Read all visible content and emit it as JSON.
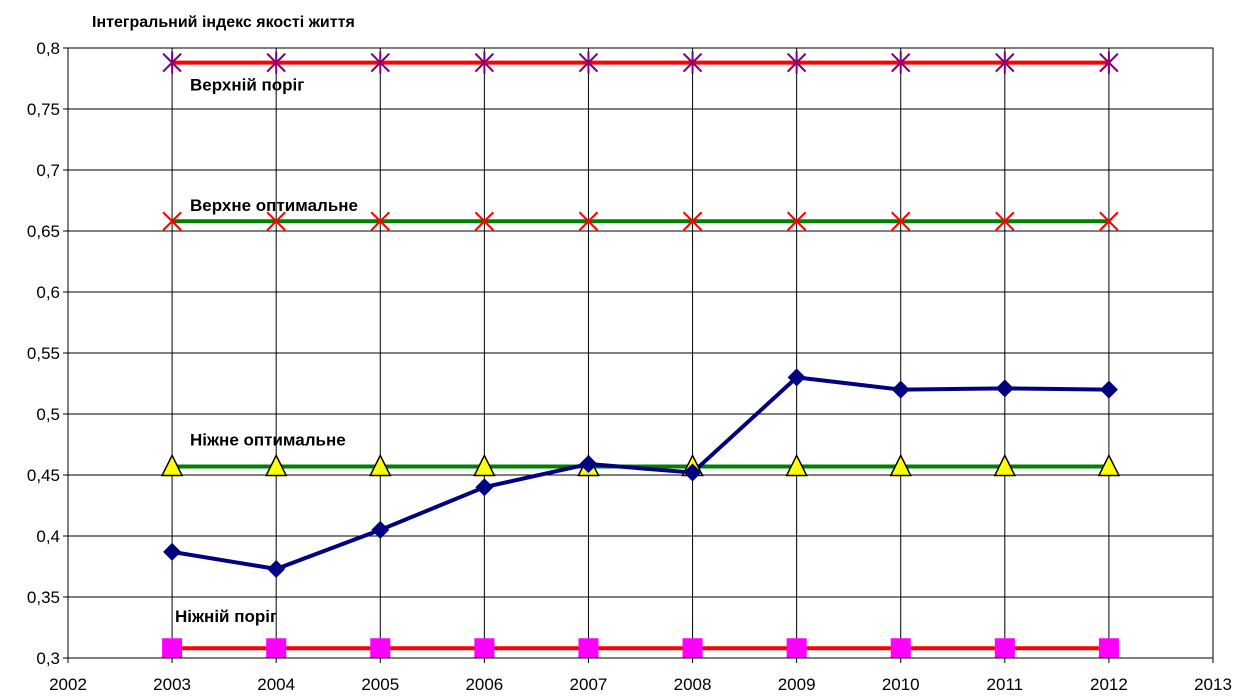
{
  "chart_data": {
    "type": "line",
    "title": "Інтегральний індекс якості життя",
    "xlabel": "",
    "ylabel": "",
    "xlim": [
      2002,
      2013
    ],
    "ylim": [
      0.3,
      0.8
    ],
    "x_ticks": [
      "2002",
      "2003",
      "2004",
      "2005",
      "2006",
      "2007",
      "2008",
      "2009",
      "2010",
      "2011",
      "2012",
      "2013"
    ],
    "y_ticks": [
      "0,3",
      "0,35",
      "0,4",
      "0,45",
      "0,5",
      "0,55",
      "0,6",
      "0,65",
      "0,7",
      "0,75",
      "0,8"
    ],
    "grid": true,
    "legend": "none",
    "x": [
      2003,
      2004,
      2005,
      2006,
      2007,
      2008,
      2009,
      2010,
      2011,
      2012
    ],
    "series": [
      {
        "name": "Верхній поріг",
        "values": [
          0.788,
          0.788,
          0.788,
          0.788,
          0.788,
          0.788,
          0.788,
          0.788,
          0.788,
          0.788
        ],
        "line_color": "#ff0000",
        "marker": "asterisk",
        "marker_color": "#800080"
      },
      {
        "name": "Верхне оптимальне",
        "values": [
          0.658,
          0.658,
          0.658,
          0.658,
          0.658,
          0.658,
          0.658,
          0.658,
          0.658,
          0.658
        ],
        "line_color": "#008000",
        "marker": "x",
        "marker_color": "#ff0000"
      },
      {
        "name": "Ніжне оптимальне",
        "values": [
          0.457,
          0.457,
          0.457,
          0.457,
          0.457,
          0.457,
          0.457,
          0.457,
          0.457,
          0.457
        ],
        "line_color": "#008000",
        "marker": "triangle",
        "marker_color": "#ffff00"
      },
      {
        "name": "Ніжній поріг",
        "values": [
          0.308,
          0.308,
          0.308,
          0.308,
          0.308,
          0.308,
          0.308,
          0.308,
          0.308,
          0.308
        ],
        "line_color": "#ff0000",
        "marker": "square",
        "marker_color": "#ff00ff"
      },
      {
        "values": [
          0.387,
          0.373,
          0.405,
          0.44,
          0.459,
          0.452,
          0.53,
          0.52,
          0.521,
          0.52
        ],
        "line_color": "#000080",
        "marker": "diamond",
        "marker_color": "#000080"
      }
    ]
  }
}
